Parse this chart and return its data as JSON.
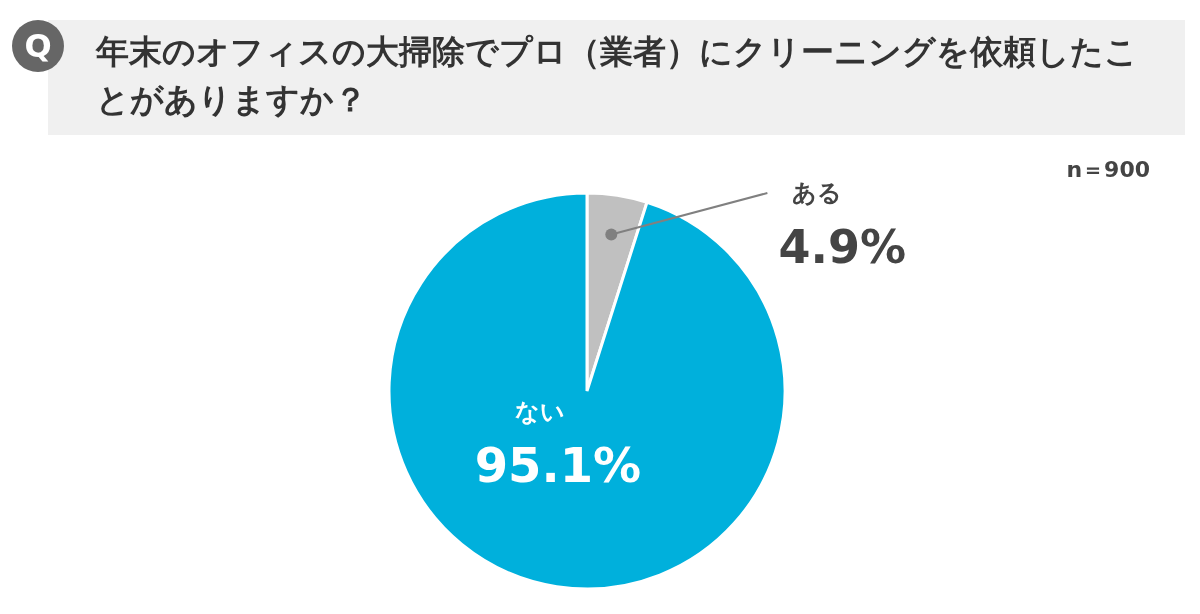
{
  "chart_data": {
    "type": "pie",
    "title": "年末のオフィスの大掃除でプロ（業者）にクリーニングを依頼したことがありますか？",
    "annotations": [
      "Q",
      "n＝900"
    ],
    "categories": [
      "ある",
      "ない"
    ],
    "values": [
      4.9,
      95.1
    ],
    "colors": [
      "#c0c0c0",
      "#00b0dc"
    ],
    "value_labels": [
      "4.9%",
      "95.1%"
    ]
  }
}
